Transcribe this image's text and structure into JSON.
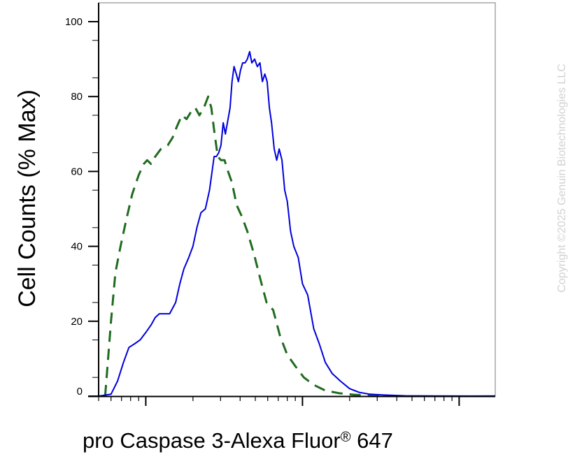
{
  "copyright": "Copyright ©2025 Genuin Biotechnologies LLC",
  "chart_data": {
    "type": "line",
    "xlabel": "pro Caspase 3-Alexa Fluor",
    "xlabel_sup": "®",
    "xlabel_tail": " 647",
    "ylabel": "Cell Counts (% Max)",
    "x_scale": "log",
    "ylim": [
      0,
      105
    ],
    "y_ticks": [
      0,
      20,
      40,
      60,
      80,
      100
    ],
    "y_tick_labels": [
      "0",
      "20",
      "40",
      "60",
      "80",
      "100"
    ],
    "x_tick_labels_shown": false,
    "legend": "none",
    "grid": false,
    "colors": {
      "series_blue": "#0000dd",
      "series_green": "#1f6b1f",
      "axis": "#000000",
      "copyright": "#d2d2d2"
    },
    "series": [
      {
        "style": "dashed",
        "color": "#1f6b1f",
        "points": [
          [
            0.55,
            0
          ],
          [
            0.57,
            8
          ],
          [
            0.6,
            20
          ],
          [
            0.64,
            33
          ],
          [
            0.69,
            40
          ],
          [
            0.75,
            47
          ],
          [
            0.82,
            54
          ],
          [
            0.9,
            59
          ],
          [
            0.97,
            62
          ],
          [
            1.02,
            63
          ],
          [
            1.08,
            62
          ],
          [
            1.15,
            64
          ],
          [
            1.25,
            66
          ],
          [
            1.38,
            67
          ],
          [
            1.48,
            69
          ],
          [
            1.58,
            72
          ],
          [
            1.7,
            75
          ],
          [
            1.82,
            74
          ],
          [
            1.95,
            76
          ],
          [
            2.07,
            77
          ],
          [
            2.2,
            75
          ],
          [
            2.35,
            77
          ],
          [
            2.5,
            80
          ],
          [
            2.62,
            77
          ],
          [
            2.75,
            70
          ],
          [
            2.88,
            64
          ],
          [
            3.02,
            63
          ],
          [
            3.18,
            63
          ],
          [
            3.35,
            60
          ],
          [
            3.55,
            57
          ],
          [
            3.8,
            51
          ],
          [
            4.1,
            48
          ],
          [
            4.45,
            44
          ],
          [
            4.9,
            38
          ],
          [
            5.4,
            31
          ],
          [
            5.9,
            25
          ],
          [
            6.5,
            23
          ],
          [
            7.2,
            16
          ],
          [
            8.0,
            11
          ],
          [
            9.0,
            8
          ],
          [
            10.2,
            5
          ],
          [
            11.8,
            3
          ],
          [
            14.0,
            1.5
          ],
          [
            17.0,
            0.8
          ],
          [
            21.0,
            0.4
          ],
          [
            26.0,
            0.2
          ],
          [
            33.0,
            0.05
          ]
        ]
      },
      {
        "style": "solid",
        "color": "#0000dd",
        "points": [
          [
            0.5,
            0
          ],
          [
            0.6,
            0.5
          ],
          [
            0.66,
            4
          ],
          [
            0.72,
            9
          ],
          [
            0.78,
            13
          ],
          [
            0.85,
            14
          ],
          [
            0.92,
            15
          ],
          [
            1.0,
            17
          ],
          [
            1.08,
            19
          ],
          [
            1.15,
            21
          ],
          [
            1.22,
            22
          ],
          [
            1.3,
            22
          ],
          [
            1.42,
            22
          ],
          [
            1.55,
            25
          ],
          [
            1.65,
            30
          ],
          [
            1.75,
            34
          ],
          [
            1.88,
            37
          ],
          [
            2.0,
            40
          ],
          [
            2.12,
            45
          ],
          [
            2.25,
            49
          ],
          [
            2.4,
            50
          ],
          [
            2.55,
            55
          ],
          [
            2.65,
            60
          ],
          [
            2.73,
            64
          ],
          [
            2.82,
            64
          ],
          [
            2.92,
            65
          ],
          [
            3.02,
            67
          ],
          [
            3.12,
            73
          ],
          [
            3.22,
            70
          ],
          [
            3.32,
            73
          ],
          [
            3.45,
            77
          ],
          [
            3.55,
            84
          ],
          [
            3.66,
            88
          ],
          [
            3.78,
            86
          ],
          [
            3.9,
            84
          ],
          [
            4.02,
            87
          ],
          [
            4.15,
            89
          ],
          [
            4.3,
            89
          ],
          [
            4.45,
            90
          ],
          [
            4.6,
            92
          ],
          [
            4.75,
            89
          ],
          [
            4.95,
            90
          ],
          [
            5.15,
            88
          ],
          [
            5.35,
            89
          ],
          [
            5.55,
            84
          ],
          [
            5.75,
            86
          ],
          [
            5.95,
            84
          ],
          [
            6.15,
            77
          ],
          [
            6.35,
            73
          ],
          [
            6.6,
            66
          ],
          [
            6.85,
            63
          ],
          [
            7.1,
            66
          ],
          [
            7.4,
            63
          ],
          [
            7.7,
            55
          ],
          [
            8.0,
            52
          ],
          [
            8.4,
            44
          ],
          [
            8.8,
            40
          ],
          [
            9.4,
            37
          ],
          [
            10.0,
            30
          ],
          [
            10.8,
            27
          ],
          [
            11.8,
            18
          ],
          [
            12.8,
            14
          ],
          [
            14.0,
            9
          ],
          [
            15.5,
            6
          ],
          [
            17.5,
            4
          ],
          [
            20.0,
            2
          ],
          [
            23.0,
            1
          ],
          [
            27.0,
            0.5
          ],
          [
            33.0,
            0.3
          ],
          [
            45.0,
            0.1
          ],
          [
            70.0,
            0.05
          ],
          [
            120.0,
            0.02
          ],
          [
            170.0,
            0.05
          ]
        ]
      }
    ]
  }
}
